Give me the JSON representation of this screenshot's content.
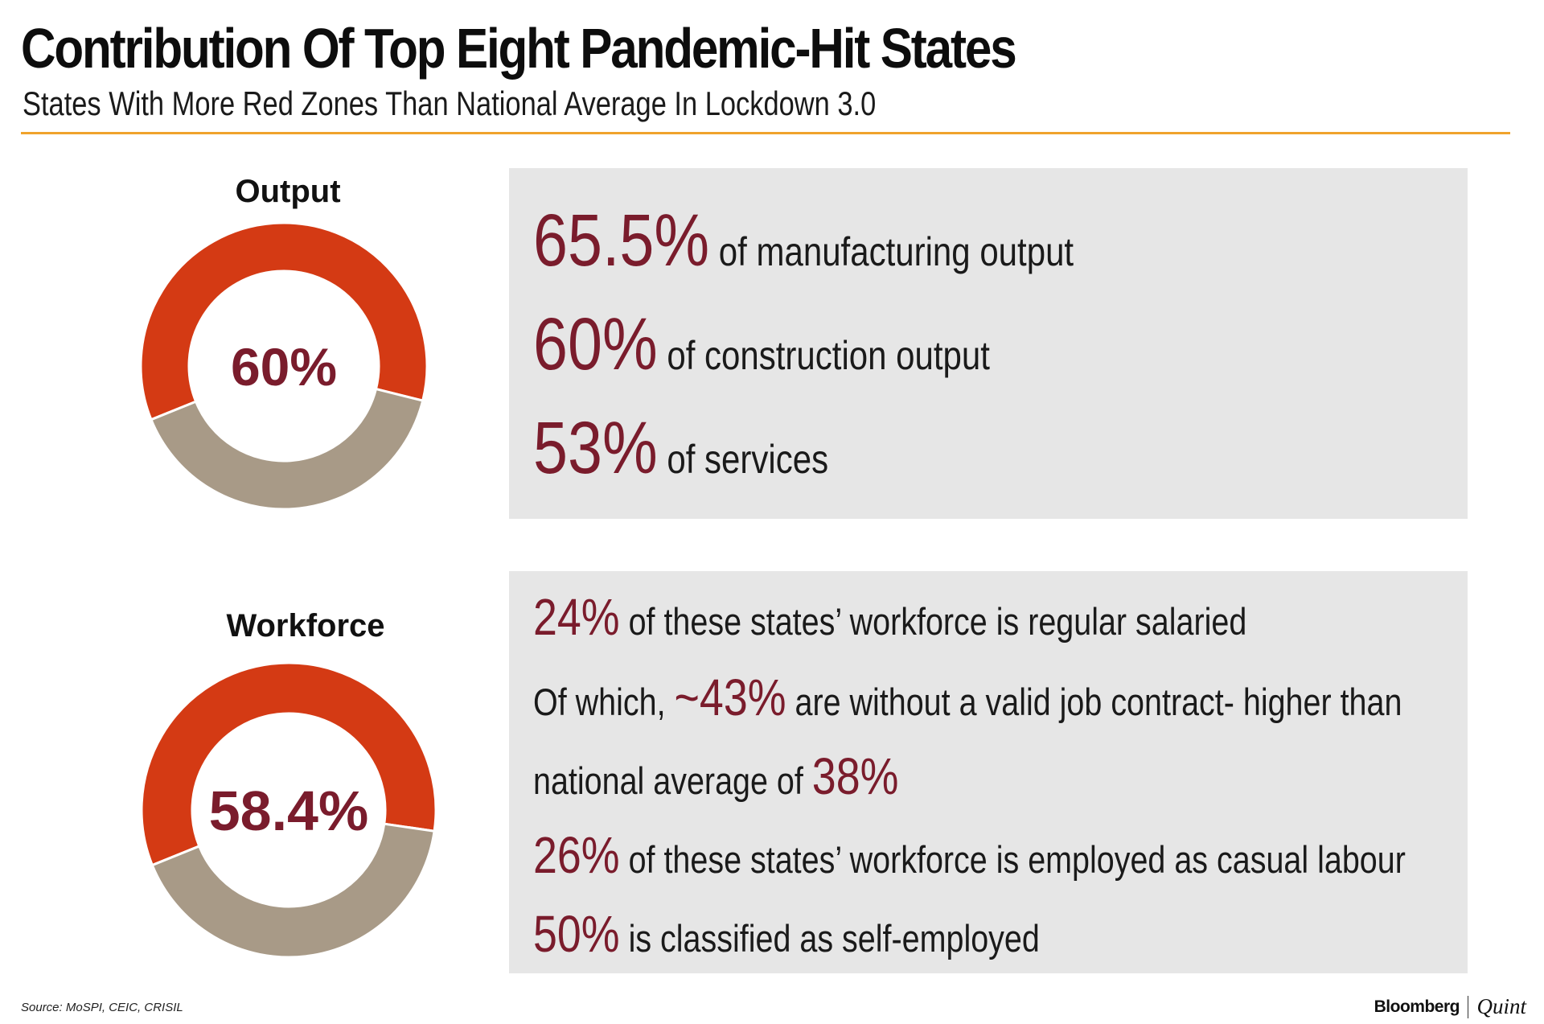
{
  "title": "Contribution Of Top Eight Pandemic-Hit States",
  "subtitle": "States With More Red Zones Than National Average In Lockdown 3.0",
  "colors": {
    "accent_rule": "#f0a32c",
    "donut_primary": "#d43a14",
    "donut_rest": "#a89a87",
    "highlight": "#7a1c2c",
    "panel": "#e6e6e6"
  },
  "chart_data": [
    {
      "type": "pie",
      "title": "Output",
      "center_label": "60%",
      "values": [
        60,
        40
      ],
      "colors": [
        "#d43a14",
        "#a89a87"
      ]
    },
    {
      "type": "pie",
      "title": "Workforce",
      "center_label": "58.4%",
      "values": [
        58.4,
        41.6
      ],
      "colors": [
        "#d43a14",
        "#a89a87"
      ]
    }
  ],
  "output_panel": {
    "lines": [
      {
        "value": "65.5%",
        "text": " of manufacturing output"
      },
      {
        "value": "60%",
        "text": " of construction output"
      },
      {
        "value": "53%",
        "text": " of services"
      }
    ]
  },
  "workforce_panel": {
    "line1": {
      "value": "24%",
      "text": " of these states’ workforce is regular salaried"
    },
    "line2": {
      "pre": "Of which, ",
      "value": "~43%",
      "text": " are without a valid job contract- higher than"
    },
    "line3": {
      "pre": "national average of ",
      "value": "38%"
    },
    "line4": {
      "value": "26%",
      "text": " of these states’ workforce is employed as casual labour"
    },
    "line5": {
      "value": "50%",
      "text": " is classified as self-employed"
    }
  },
  "source": "Source: MoSPI, CEIC, CRISIL",
  "brand": {
    "name1": "Bloomberg",
    "name2": "Quint"
  }
}
